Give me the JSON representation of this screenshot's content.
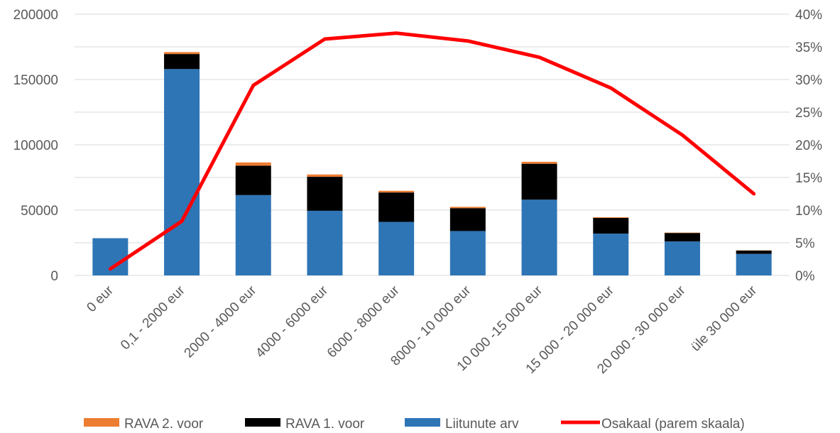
{
  "chart_data": {
    "type": "bar",
    "stacked": true,
    "categories": [
      "0 eur",
      "0,1 - 2000 eur",
      "2000 - 4000 eur",
      "4000 - 6000 eur",
      "6000 - 8000 eur",
      "8000 - 10 000 eur",
      "10 000 -15 000 eur",
      "15 000 - 20 000 eur",
      "20 000 - 30 000 eur",
      "üle 30 000 eur"
    ],
    "series": [
      {
        "name": "Liitunute arv",
        "color": "#2E75B6",
        "values": [
          28500,
          158000,
          61500,
          49500,
          41000,
          34000,
          58000,
          32000,
          26000,
          16500
        ]
      },
      {
        "name": "RAVA 1. voor",
        "color": "#000000",
        "values": [
          0,
          11500,
          22500,
          26000,
          22500,
          17500,
          27500,
          12000,
          6500,
          2500
        ]
      },
      {
        "name": "RAVA 2. voor",
        "color": "#ED7D31",
        "values": [
          0,
          1500,
          2500,
          1800,
          1300,
          1000,
          1500,
          500,
          300,
          200
        ]
      }
    ],
    "line_series": {
      "name": "Osakaal (parem skaala)",
      "color": "#FF0000",
      "axis": "right",
      "values": [
        0.01,
        0.083,
        0.291,
        0.362,
        0.371,
        0.359,
        0.334,
        0.287,
        0.215,
        0.125
      ]
    },
    "yticks": [
      "0",
      "50000",
      "100000",
      "150000",
      "200000"
    ],
    "ylim": [
      0,
      200000
    ],
    "y2ticks": [
      "0%",
      "5%",
      "10%",
      "15%",
      "20%",
      "25%",
      "30%",
      "35%",
      "40%"
    ],
    "y2lim": [
      0,
      0.4
    ],
    "grid": true,
    "legend_position": "bottom",
    "legend": [
      {
        "label": "RAVA 2. voor",
        "color": "#ED7D31",
        "kind": "box"
      },
      {
        "label": "RAVA 1. voor",
        "color": "#000000",
        "kind": "box"
      },
      {
        "label": "Liitunute arv",
        "color": "#2E75B6",
        "kind": "box"
      },
      {
        "label": "Osakaal (parem skaala)",
        "color": "#FF0000",
        "kind": "line"
      }
    ]
  }
}
